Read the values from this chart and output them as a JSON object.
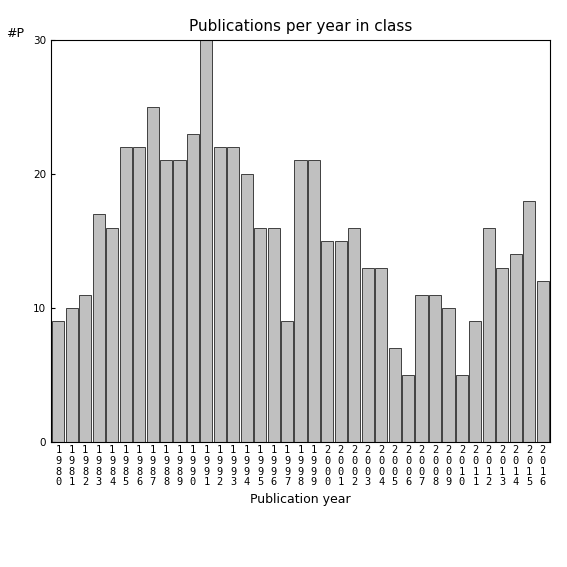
{
  "years": [
    "1980",
    "1981",
    "1982",
    "1983",
    "1984",
    "1985",
    "1986",
    "1987",
    "1988",
    "1989",
    "1990",
    "1991",
    "1992",
    "1993",
    "1994",
    "1995",
    "1996",
    "1997",
    "1998",
    "1999",
    "2000",
    "2001",
    "2002",
    "2003",
    "2004",
    "2005",
    "2006",
    "2007",
    "2008",
    "2009",
    "2010",
    "2011",
    "2012",
    "2013",
    "2014",
    "2015",
    "2016"
  ],
  "values": [
    9,
    10,
    11,
    17,
    16,
    22,
    22,
    25,
    21,
    21,
    23,
    30,
    22,
    22,
    20,
    16,
    16,
    9,
    21,
    21,
    15,
    15,
    16,
    13,
    13,
    7,
    5,
    11,
    11,
    10,
    5,
    9,
    16,
    13,
    14,
    18,
    12
  ],
  "bar_color": "#c0c0c0",
  "bar_edge_color": "#404040",
  "title": "Publications per year in class",
  "xlabel": "Publication year",
  "ylabel": "#P",
  "ylim": [
    0,
    30
  ],
  "yticks": [
    0,
    10,
    20,
    30
  ],
  "background_color": "#ffffff",
  "title_fontsize": 11,
  "label_fontsize": 9,
  "tick_fontsize": 7.5
}
